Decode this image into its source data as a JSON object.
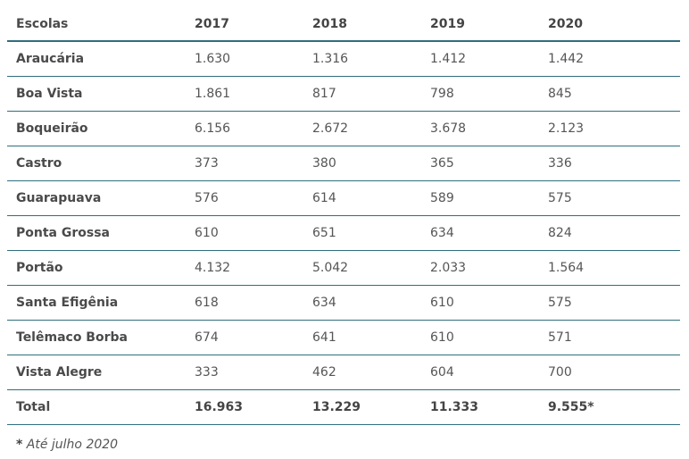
{
  "table": {
    "headers": [
      "Escolas",
      "2017",
      "2018",
      "2019",
      "2020"
    ],
    "rows": [
      [
        "Araucária",
        "1.630",
        "1.316",
        "1.412",
        "1.442"
      ],
      [
        "Boa Vista",
        "1.861",
        "817",
        "798",
        "845"
      ],
      [
        "Boqueirão",
        "6.156",
        "2.672",
        "3.678",
        "2.123"
      ],
      [
        "Castro",
        "373",
        "380",
        "365",
        "336"
      ],
      [
        "Guarapuava",
        "576",
        "614",
        "589",
        "575"
      ],
      [
        "Ponta Grossa",
        "610",
        "651",
        "634",
        "824"
      ],
      [
        "Portão",
        "4.132",
        "5.042",
        "2.033",
        "1.564"
      ],
      [
        "Santa Efigênia",
        "618",
        "634",
        "610",
        "575"
      ],
      [
        "Telêmaco Borba",
        "674",
        "641",
        "610",
        "571"
      ],
      [
        "Vista Alegre",
        "333",
        "462",
        "604",
        "700"
      ]
    ],
    "total": [
      "Total",
      "16.963",
      "13.229",
      "11.333",
      "9.555*"
    ]
  },
  "footnote": {
    "marker": "*",
    "text": " Até julho 2020"
  },
  "colors": {
    "rule": "#2f6f7d",
    "text": "#444444"
  }
}
